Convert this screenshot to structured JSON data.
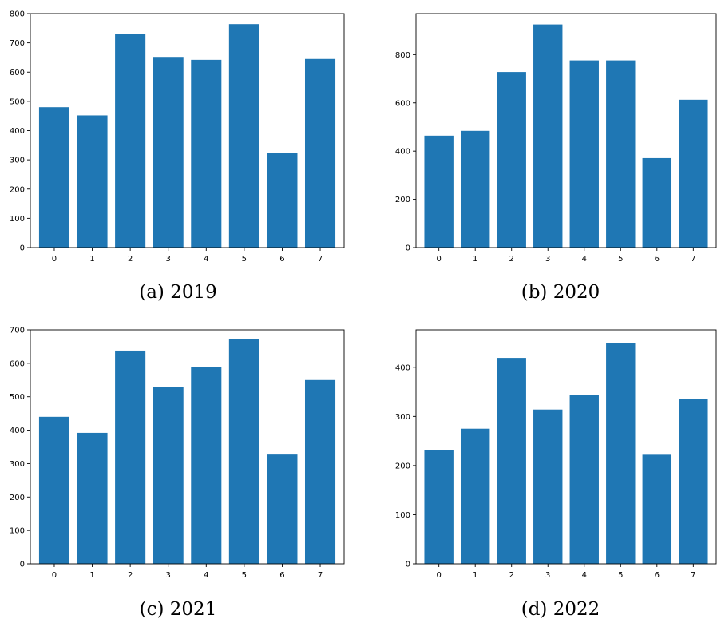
{
  "chart_data": [
    {
      "type": "bar",
      "caption": "(a) 2019",
      "categories": [
        "0",
        "1",
        "2",
        "3",
        "4",
        "5",
        "6",
        "7"
      ],
      "values": [
        480,
        452,
        730,
        652,
        642,
        764,
        323,
        645
      ],
      "ylim": [
        0,
        800
      ],
      "yticks": [
        "0",
        "100",
        "200",
        "300",
        "400",
        "500",
        "600",
        "700",
        "800"
      ],
      "color": "#1f77b4",
      "grid": false
    },
    {
      "type": "bar",
      "caption": "(b) 2020",
      "categories": [
        "0",
        "1",
        "2",
        "3",
        "4",
        "5",
        "6",
        "7"
      ],
      "values": [
        464,
        484,
        728,
        925,
        776,
        776,
        371,
        613
      ],
      "ylim": [
        0,
        970
      ],
      "yticks": [
        "0",
        "200",
        "400",
        "600",
        "800"
      ],
      "color": "#1f77b4",
      "grid": false
    },
    {
      "type": "bar",
      "caption": "(c) 2021",
      "categories": [
        "0",
        "1",
        "2",
        "3",
        "4",
        "5",
        "6",
        "7"
      ],
      "values": [
        440,
        392,
        638,
        530,
        590,
        672,
        327,
        550
      ],
      "ylim": [
        0,
        700
      ],
      "yticks": [
        "0",
        "100",
        "200",
        "300",
        "400",
        "500",
        "600",
        "700"
      ],
      "color": "#1f77b4",
      "grid": false
    },
    {
      "type": "bar",
      "caption": "(d) 2022",
      "categories": [
        "0",
        "1",
        "2",
        "3",
        "4",
        "5",
        "6",
        "7"
      ],
      "values": [
        231,
        275,
        419,
        314,
        343,
        450,
        222,
        336
      ],
      "ylim": [
        0,
        476
      ],
      "yticks": [
        "0",
        "100",
        "200",
        "300",
        "400"
      ],
      "color": "#1f77b4",
      "grid": false
    }
  ]
}
